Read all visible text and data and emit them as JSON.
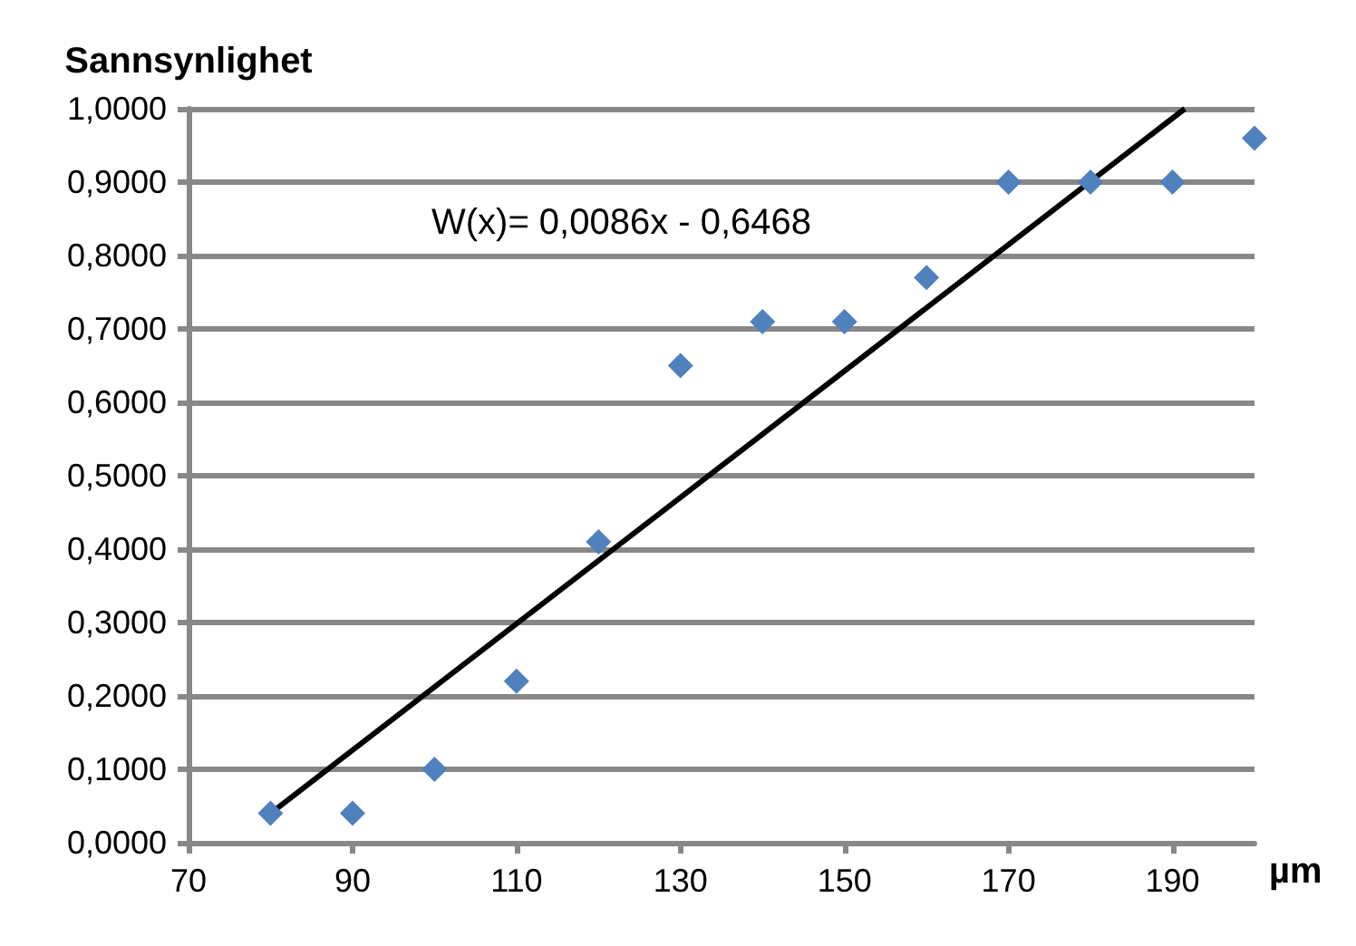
{
  "chart_data": {
    "type": "scatter",
    "xlabel": "µm",
    "ylabel": "Sannsynlighet",
    "annotations": [
      "W(x)= 0,0086x - 0,6468"
    ],
    "x": [
      80,
      90,
      100,
      110,
      120,
      130,
      140,
      150,
      160,
      170,
      180,
      190,
      200
    ],
    "series": [
      {
        "color": "#4f81bd",
        "marker": "diamond",
        "values": [
          0.04,
          0.04,
          0.1,
          0.22,
          0.41,
          0.65,
          0.71,
          0.71,
          0.77,
          0.9,
          0.9,
          0.9,
          0.96
        ]
      },
      {
        "type": "line",
        "color": "#000000",
        "marker": "none",
        "line_style": "solid",
        "x": [
          80,
          191.5
        ],
        "values": [
          0.04,
          1.0
        ]
      }
    ],
    "xlim": [
      70,
      200
    ],
    "xticks": [
      70,
      90,
      110,
      130,
      150,
      170,
      190
    ],
    "ylim": [
      0,
      1
    ],
    "yticks": [
      {
        "value": 0,
        "label": "0,0000"
      },
      {
        "value": 0.1,
        "label": "0,1000"
      },
      {
        "value": 0.2,
        "label": "0,2000"
      },
      {
        "value": 0.3,
        "label": "0,3000"
      },
      {
        "value": 0.4,
        "label": "0,4000"
      },
      {
        "value": 0.5,
        "label": "0,5000"
      },
      {
        "value": 0.6,
        "label": "0,6000"
      },
      {
        "value": 0.7,
        "label": "0,7000"
      },
      {
        "value": 0.8,
        "label": "0,8000"
      },
      {
        "value": 0.9,
        "label": "0,9000"
      },
      {
        "value": 1,
        "label": "1,0000"
      }
    ],
    "grid": "y"
  }
}
